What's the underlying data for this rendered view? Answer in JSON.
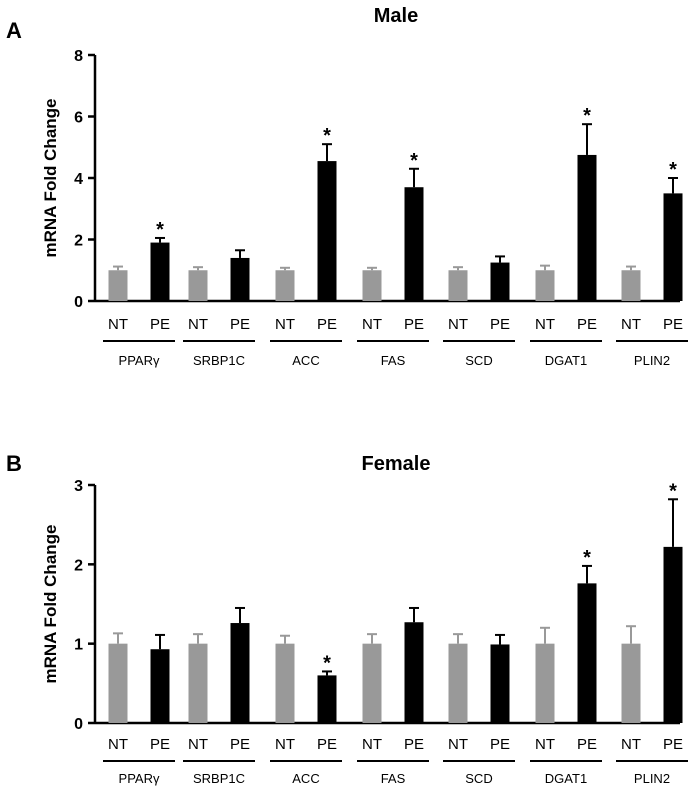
{
  "chart_data": [
    {
      "type": "bar",
      "panel": "A",
      "title": "Male",
      "ylabel": "mRNA Fold Change",
      "xlabel": "",
      "ylim": [
        0,
        8
      ],
      "yticks": [
        0,
        2,
        4,
        6,
        8
      ],
      "groups": [
        "PPARγ",
        "SRBP1C",
        "ACC",
        "FAS",
        "SCD",
        "DGAT1",
        "PLIN2"
      ],
      "conditions": [
        "NT",
        "PE"
      ],
      "colors": {
        "NT": "#999999",
        "PE": "#000000"
      },
      "series": [
        {
          "name": "NT",
          "values": [
            1.0,
            1.0,
            1.0,
            1.0,
            1.0,
            1.0,
            1.0
          ],
          "errors": [
            0.12,
            0.1,
            0.08,
            0.08,
            0.1,
            0.15,
            0.12
          ]
        },
        {
          "name": "PE",
          "values": [
            1.9,
            1.4,
            4.55,
            3.7,
            1.25,
            4.75,
            3.5
          ],
          "errors": [
            0.15,
            0.25,
            0.55,
            0.6,
            0.2,
            1.0,
            0.5
          ]
        }
      ],
      "significant": [
        true,
        false,
        true,
        true,
        false,
        true,
        true
      ],
      "star_label": "*"
    },
    {
      "type": "bar",
      "panel": "B",
      "title": "Female",
      "ylabel": "mRNA Fold Change",
      "xlabel": "",
      "ylim": [
        0,
        3
      ],
      "yticks": [
        0,
        1,
        2,
        3
      ],
      "groups": [
        "PPARγ",
        "SRBP1C",
        "ACC",
        "FAS",
        "SCD",
        "DGAT1",
        "PLIN2"
      ],
      "conditions": [
        "NT",
        "PE"
      ],
      "colors": {
        "NT": "#999999",
        "PE": "#000000"
      },
      "series": [
        {
          "name": "NT",
          "values": [
            1.0,
            1.0,
            1.0,
            1.0,
            1.0,
            1.0,
            1.0
          ],
          "errors": [
            0.13,
            0.12,
            0.1,
            0.12,
            0.12,
            0.2,
            0.22
          ]
        },
        {
          "name": "PE",
          "values": [
            0.93,
            1.26,
            0.6,
            1.27,
            0.99,
            1.76,
            2.22
          ],
          "errors": [
            0.18,
            0.19,
            0.05,
            0.18,
            0.12,
            0.22,
            0.6
          ]
        }
      ],
      "significant": [
        false,
        false,
        true,
        false,
        false,
        true,
        true
      ],
      "star_label": "*"
    }
  ]
}
